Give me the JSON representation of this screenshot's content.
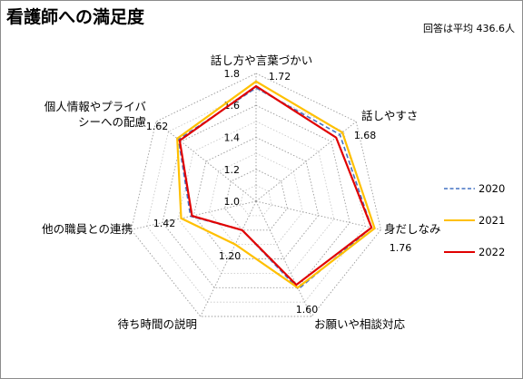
{
  "title": "看護師への満足度",
  "note": "回答は平均 436.6人",
  "chart_data": {
    "type": "radar",
    "title": "看護師への満足度",
    "subtitle": "回答は平均 436.6人",
    "axes": [
      "話し方や言葉づかい",
      "話しやすさ",
      "身だしなみ",
      "お願いや相談対応",
      "待ち時間の説明",
      "他の職員との連携",
      "個人情報やプライバシーへの配慮"
    ],
    "axis_labels_lines": [
      [
        "話し方や言葉づかい"
      ],
      [
        "話しやすさ"
      ],
      [
        "身だしなみ"
      ],
      [
        "お願いや相談対応"
      ],
      [
        "待ち時間の説明"
      ],
      [
        "他の職員との連携"
      ],
      [
        "個人情報やプライバ",
        "シーへの配慮"
      ]
    ],
    "rlim": [
      1.0,
      1.8
    ],
    "r_ticks": [
      1.0,
      1.2,
      1.4,
      1.6,
      1.8
    ],
    "r_tick_labels": [
      "1.0",
      "1.2",
      "1.4",
      "1.6",
      "1.8"
    ],
    "grid": true,
    "legend_position": "right",
    "data_labels": [
      "1.72",
      "1.68",
      "1.76",
      "1.60",
      "1.20",
      "1.42",
      "1.62"
    ],
    "series": [
      {
        "name": "2020",
        "values": [
          1.71,
          1.67,
          1.74,
          1.61,
          1.2,
          1.42,
          1.62
        ],
        "color": "#4472C4",
        "dash": "5,3"
      },
      {
        "name": "2021",
        "values": [
          1.75,
          1.69,
          1.76,
          1.6,
          1.3,
          1.48,
          1.63
        ],
        "color": "#FFC000",
        "dash": ""
      },
      {
        "name": "2022",
        "values": [
          1.72,
          1.64,
          1.74,
          1.58,
          1.2,
          1.41,
          1.61
        ],
        "color": "#E00000",
        "dash": ""
      }
    ]
  }
}
